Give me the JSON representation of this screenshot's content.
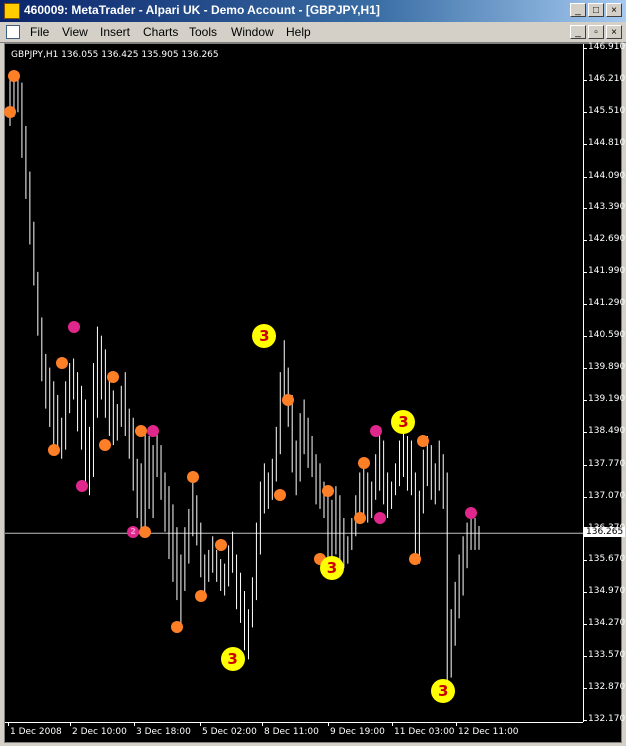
{
  "window": {
    "title": "460009: MetaTrader - Alpari UK - Demo Account - [GBPJPY,H1]",
    "buttons": [
      "_",
      "□",
      "×"
    ]
  },
  "menu": {
    "items": [
      "File",
      "View",
      "Insert",
      "Charts",
      "Tools",
      "Window",
      "Help"
    ],
    "mdi_buttons": [
      "_",
      "▫",
      "×"
    ]
  },
  "chart": {
    "symbol_info": "GBPJPY,H1  136.055 136.425 135.905 136.265",
    "current_price": "136.265",
    "colors": {
      "background": "#000000",
      "bars": "#ffffff",
      "axis": "#ffffff",
      "price_line": "#c0c0c0",
      "marker_orange": "#ff7f27",
      "marker_magenta": "#e0288c",
      "marker_yellow": "#ffff00"
    },
    "price_labels": [
      "146.910",
      "146.210",
      "145.510",
      "144.810",
      "144.090",
      "143.390",
      "142.690",
      "141.990",
      "141.290",
      "140.590",
      "139.890",
      "139.190",
      "138.490",
      "137.770",
      "137.070",
      "136.370",
      "135.670",
      "134.970",
      "134.270",
      "133.570",
      "132.870",
      "132.170"
    ],
    "time_labels": [
      "1 Dec 2008",
      "2 Dec 10:00",
      "3 Dec 18:00",
      "5 Dec 02:00",
      "8 Dec 11:00",
      "9 Dec 19:00",
      "11 Dec 03:00",
      "12 Dec 11:00"
    ]
  },
  "chart_data": {
    "type": "ohlc",
    "x_labels": [
      "1 Dec 2008",
      "2 Dec 10:00",
      "3 Dec 18:00",
      "5 Dec 02:00",
      "8 Dec 11:00",
      "9 Dec 19:00",
      "11 Dec 03:00",
      "12 Dec 11:00"
    ],
    "ylim": [
      132.17,
      146.91
    ],
    "last_bar": {
      "open": 136.055,
      "high": 136.425,
      "low": 135.905,
      "close": 136.265
    },
    "bars": [
      {
        "h": 146.2,
        "l": 145.2
      },
      {
        "h": 146.3,
        "l": 145.4
      },
      {
        "h": 146.25,
        "l": 145.5
      },
      {
        "h": 146.15,
        "l": 144.5
      },
      {
        "h": 145.2,
        "l": 143.6
      },
      {
        "h": 144.2,
        "l": 142.6
      },
      {
        "h": 143.1,
        "l": 141.7
      },
      {
        "h": 142.0,
        "l": 140.6
      },
      {
        "h": 141.0,
        "l": 139.6
      },
      {
        "h": 140.2,
        "l": 139.0
      },
      {
        "h": 139.9,
        "l": 138.6
      },
      {
        "h": 139.6,
        "l": 138.2
      },
      {
        "h": 139.3,
        "l": 138.0
      },
      {
        "h": 138.8,
        "l": 137.9
      },
      {
        "h": 139.6,
        "l": 138.1
      },
      {
        "h": 140.0,
        "l": 138.9
      },
      {
        "h": 140.1,
        "l": 139.2
      },
      {
        "h": 139.8,
        "l": 138.5
      },
      {
        "h": 139.5,
        "l": 138.1
      },
      {
        "h": 139.2,
        "l": 137.3
      },
      {
        "h": 138.6,
        "l": 137.1
      },
      {
        "h": 140.0,
        "l": 137.5
      },
      {
        "h": 140.8,
        "l": 138.8
      },
      {
        "h": 140.6,
        "l": 139.2
      },
      {
        "h": 140.3,
        "l": 138.8
      },
      {
        "h": 139.7,
        "l": 138.4
      },
      {
        "h": 139.4,
        "l": 138.2
      },
      {
        "h": 139.1,
        "l": 138.3
      },
      {
        "h": 139.5,
        "l": 138.6
      },
      {
        "h": 139.8,
        "l": 138.4
      },
      {
        "h": 139.0,
        "l": 137.9
      },
      {
        "h": 138.8,
        "l": 137.2
      },
      {
        "h": 137.9,
        "l": 136.6
      },
      {
        "h": 137.8,
        "l": 136.3
      },
      {
        "h": 138.5,
        "l": 136.4
      },
      {
        "h": 138.4,
        "l": 136.8
      },
      {
        "h": 138.2,
        "l": 136.6
      },
      {
        "h": 138.5,
        "l": 137.5
      },
      {
        "h": 138.2,
        "l": 137.0
      },
      {
        "h": 137.6,
        "l": 136.3
      },
      {
        "h": 137.3,
        "l": 135.7
      },
      {
        "h": 136.9,
        "l": 135.2
      },
      {
        "h": 136.4,
        "l": 134.8
      },
      {
        "h": 135.8,
        "l": 134.2
      },
      {
        "h": 136.4,
        "l": 135.0
      },
      {
        "h": 136.8,
        "l": 135.6
      },
      {
        "h": 137.5,
        "l": 136.2
      },
      {
        "h": 137.1,
        "l": 136.0
      },
      {
        "h": 136.5,
        "l": 135.3
      },
      {
        "h": 135.8,
        "l": 134.9
      },
      {
        "h": 135.9,
        "l": 135.2
      },
      {
        "h": 136.2,
        "l": 135.4
      },
      {
        "h": 135.9,
        "l": 135.2
      },
      {
        "h": 135.7,
        "l": 135.0
      },
      {
        "h": 135.6,
        "l": 134.9
      },
      {
        "h": 136.0,
        "l": 135.1
      },
      {
        "h": 136.3,
        "l": 135.4
      },
      {
        "h": 135.8,
        "l": 134.6
      },
      {
        "h": 135.4,
        "l": 134.3
      },
      {
        "h": 135.0,
        "l": 133.7
      },
      {
        "h": 134.6,
        "l": 133.5
      },
      {
        "h": 135.3,
        "l": 134.2
      },
      {
        "h": 136.5,
        "l": 134.8
      },
      {
        "h": 137.4,
        "l": 135.8
      },
      {
        "h": 137.8,
        "l": 136.7
      },
      {
        "h": 137.6,
        "l": 136.8
      },
      {
        "h": 137.9,
        "l": 137.0
      },
      {
        "h": 138.6,
        "l": 137.4
      },
      {
        "h": 139.8,
        "l": 138.0
      },
      {
        "h": 140.5,
        "l": 139.1
      },
      {
        "h": 139.9,
        "l": 138.6
      },
      {
        "h": 139.3,
        "l": 137.6
      },
      {
        "h": 138.3,
        "l": 137.1
      },
      {
        "h": 138.9,
        "l": 137.4
      },
      {
        "h": 139.2,
        "l": 138.0
      },
      {
        "h": 138.8,
        "l": 137.7
      },
      {
        "h": 138.4,
        "l": 137.5
      },
      {
        "h": 138.0,
        "l": 136.9
      },
      {
        "h": 137.8,
        "l": 136.8
      },
      {
        "h": 137.4,
        "l": 136.6
      },
      {
        "h": 137.2,
        "l": 135.7
      },
      {
        "h": 137.0,
        "l": 135.4
      },
      {
        "h": 137.3,
        "l": 135.8
      },
      {
        "h": 137.1,
        "l": 135.6
      },
      {
        "h": 136.6,
        "l": 135.5
      },
      {
        "h": 136.2,
        "l": 135.6
      },
      {
        "h": 136.6,
        "l": 135.9
      },
      {
        "h": 137.1,
        "l": 136.2
      },
      {
        "h": 137.6,
        "l": 136.5
      },
      {
        "h": 137.8,
        "l": 136.6
      },
      {
        "h": 137.6,
        "l": 136.5
      },
      {
        "h": 137.4,
        "l": 136.6
      },
      {
        "h": 138.0,
        "l": 137.0
      },
      {
        "h": 138.5,
        "l": 137.2
      },
      {
        "h": 138.3,
        "l": 136.9
      },
      {
        "h": 137.6,
        "l": 136.6
      },
      {
        "h": 137.4,
        "l": 136.8
      },
      {
        "h": 137.8,
        "l": 137.1
      },
      {
        "h": 138.3,
        "l": 137.3
      },
      {
        "h": 138.6,
        "l": 137.5
      },
      {
        "h": 138.4,
        "l": 137.2
      },
      {
        "h": 138.3,
        "l": 137.1
      },
      {
        "h": 137.6,
        "l": 135.8
      },
      {
        "h": 137.2,
        "l": 135.6
      },
      {
        "h": 138.1,
        "l": 136.7
      },
      {
        "h": 138.4,
        "l": 137.3
      },
      {
        "h": 138.2,
        "l": 137.0
      },
      {
        "h": 137.8,
        "l": 136.9
      },
      {
        "h": 138.3,
        "l": 137.2
      },
      {
        "h": 138.0,
        "l": 136.8
      },
      {
        "h": 137.6,
        "l": 132.8
      },
      {
        "h": 134.6,
        "l": 133.1
      },
      {
        "h": 135.2,
        "l": 133.8
      },
      {
        "h": 135.8,
        "l": 134.4
      },
      {
        "h": 136.2,
        "l": 134.9
      },
      {
        "h": 136.5,
        "l": 135.5
      },
      {
        "h": 136.7,
        "l": 135.9
      },
      {
        "h": 136.6,
        "l": 135.9
      },
      {
        "h": 136.425,
        "l": 135.905
      }
    ],
    "markers": [
      {
        "bar": 0,
        "price": 145.5,
        "color": "orange",
        "size": "small",
        "label": ""
      },
      {
        "bar": 1,
        "price": 146.3,
        "color": "orange",
        "size": "small",
        "label": ""
      },
      {
        "bar": 11,
        "price": 138.1,
        "color": "orange",
        "size": "small",
        "label": ""
      },
      {
        "bar": 13,
        "price": 140.0,
        "color": "orange",
        "size": "small",
        "label": ""
      },
      {
        "bar": 16,
        "price": 140.8,
        "color": "magenta",
        "size": "small",
        "label": ""
      },
      {
        "bar": 18,
        "price": 137.3,
        "color": "magenta",
        "size": "small",
        "label": ""
      },
      {
        "bar": 24,
        "price": 138.2,
        "color": "orange",
        "size": "small",
        "label": ""
      },
      {
        "bar": 26,
        "price": 139.7,
        "color": "orange",
        "size": "small",
        "label": ""
      },
      {
        "bar": 31,
        "price": 136.3,
        "color": "magenta",
        "size": "small",
        "label": "2"
      },
      {
        "bar": 33,
        "price": 138.5,
        "color": "orange",
        "size": "small",
        "label": ""
      },
      {
        "bar": 34,
        "price": 136.3,
        "color": "orange",
        "size": "small",
        "label": ""
      },
      {
        "bar": 36,
        "price": 138.5,
        "color": "magenta",
        "size": "small",
        "label": ""
      },
      {
        "bar": 42,
        "price": 134.2,
        "color": "orange",
        "size": "small",
        "label": ""
      },
      {
        "bar": 46,
        "price": 137.5,
        "color": "orange",
        "size": "small",
        "label": ""
      },
      {
        "bar": 48,
        "price": 134.9,
        "color": "orange",
        "size": "small",
        "label": ""
      },
      {
        "bar": 53,
        "price": 136.0,
        "color": "orange",
        "size": "small",
        "label": ""
      },
      {
        "bar": 56,
        "price": 133.5,
        "color": "yellow",
        "size": "big",
        "label": "3"
      },
      {
        "bar": 64,
        "price": 140.6,
        "color": "yellow",
        "size": "big",
        "label": "3"
      },
      {
        "bar": 68,
        "price": 137.1,
        "color": "orange",
        "size": "small",
        "label": ""
      },
      {
        "bar": 70,
        "price": 139.2,
        "color": "orange",
        "size": "small",
        "label": ""
      },
      {
        "bar": 78,
        "price": 135.7,
        "color": "orange",
        "size": "small",
        "label": ""
      },
      {
        "bar": 80,
        "price": 137.2,
        "color": "orange",
        "size": "small",
        "label": ""
      },
      {
        "bar": 81,
        "price": 135.5,
        "color": "yellow",
        "size": "big",
        "label": "3"
      },
      {
        "bar": 88,
        "price": 136.6,
        "color": "orange",
        "size": "small",
        "label": ""
      },
      {
        "bar": 89,
        "price": 137.8,
        "color": "orange",
        "size": "small",
        "label": ""
      },
      {
        "bar": 93,
        "price": 136.6,
        "color": "magenta",
        "size": "small",
        "label": ""
      },
      {
        "bar": 92,
        "price": 138.5,
        "color": "magenta",
        "size": "small",
        "label": ""
      },
      {
        "bar": 99,
        "price": 138.7,
        "color": "yellow",
        "size": "big",
        "label": "3"
      },
      {
        "bar": 102,
        "price": 135.7,
        "color": "orange",
        "size": "small",
        "label": ""
      },
      {
        "bar": 104,
        "price": 138.3,
        "color": "orange",
        "size": "small",
        "label": ""
      },
      {
        "bar": 109,
        "price": 132.8,
        "color": "yellow",
        "size": "big",
        "label": "3"
      },
      {
        "bar": 116,
        "price": 136.7,
        "color": "magenta",
        "size": "small",
        "label": ""
      }
    ]
  }
}
